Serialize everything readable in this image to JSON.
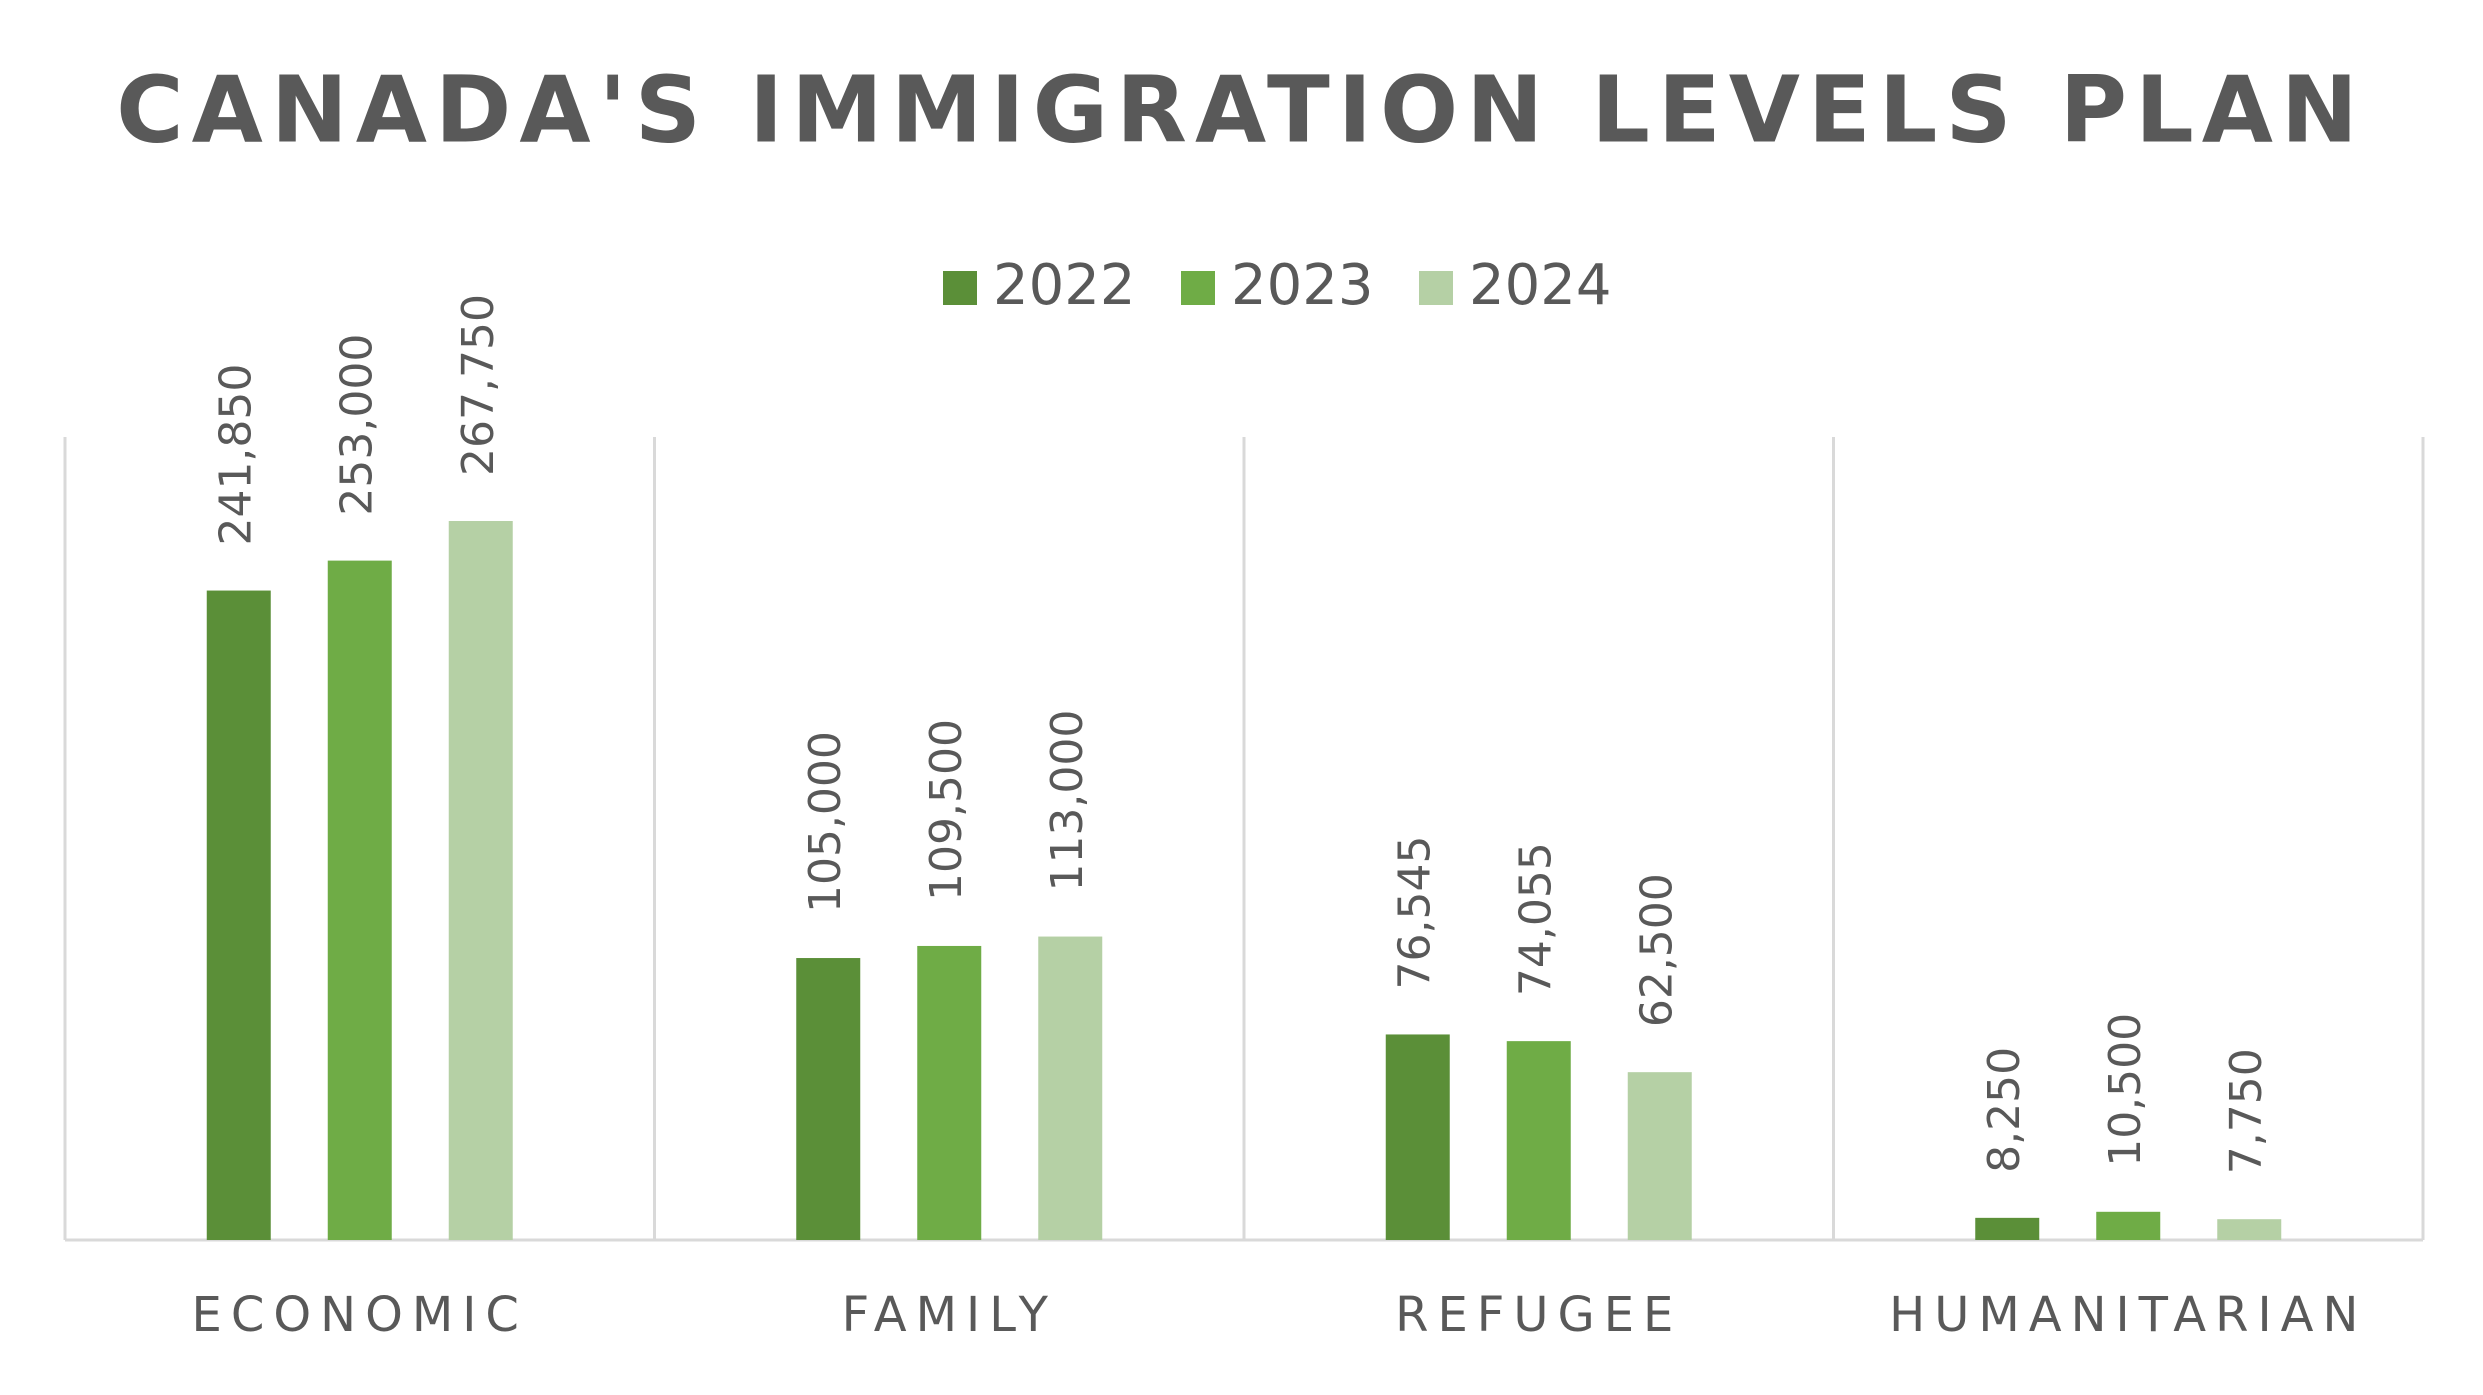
{
  "chart_data": {
    "type": "bar",
    "title": "CANADA'S IMMIGRATION LEVELS PLAN",
    "categories": [
      "ECONOMIC",
      "FAMILY",
      "REFUGEE",
      "HUMANITARIAN"
    ],
    "series": [
      {
        "name": "2022",
        "color": "#5b8f38",
        "values": [
          241850,
          105000,
          76545,
          8250
        ],
        "value_labels": [
          "241,850",
          "105,000",
          "76,545",
          "8,250"
        ]
      },
      {
        "name": "2023",
        "color": "#6fac46",
        "values": [
          253000,
          109500,
          74055,
          10500
        ],
        "value_labels": [
          "253,000",
          "109,500",
          "74,055",
          "10,500"
        ]
      },
      {
        "name": "2024",
        "color": "#b5d0a5",
        "values": [
          267750,
          113000,
          62500,
          7750
        ],
        "value_labels": [
          "267,750",
          "113,000",
          "62,500",
          "7,750"
        ]
      }
    ],
    "legend": "top"
  }
}
